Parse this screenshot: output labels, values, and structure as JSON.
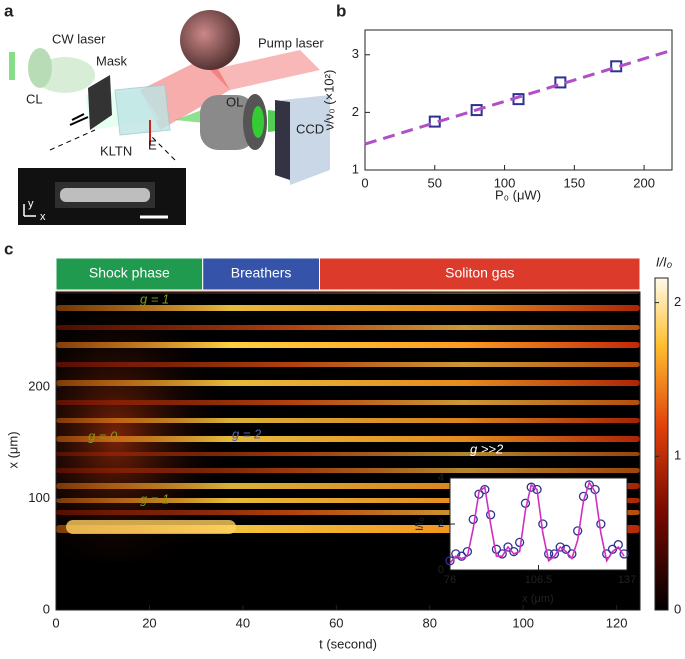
{
  "panel_a": {
    "label": "a",
    "cw_laser": "CW laser",
    "cl": "CL",
    "mask": "Mask",
    "pump_laser": "Pump laser",
    "ol": "OL",
    "ccd": "CCD",
    "kltn": "KLTN",
    "e": "E",
    "axis_y": "y",
    "axis_x": "x"
  },
  "chart_data": [
    {
      "type": "scatter",
      "label": "b",
      "x_label": "P₀ (μW)",
      "y_label": "ν/ν₀ (×10²)",
      "xlim": [
        0,
        220
      ],
      "ylim": [
        1,
        3.43
      ],
      "xticks": [
        0,
        50,
        100,
        150,
        200
      ],
      "yticks": [
        1,
        2,
        3
      ],
      "series": [
        {
          "marker": "square",
          "color": "#2e3192",
          "x": [
            50,
            80,
            110,
            140,
            180
          ],
          "values": [
            1.84,
            2.04,
            2.23,
            2.52,
            2.8
          ]
        },
        {
          "marker": "dashed-line",
          "color": "#b04fc6",
          "x": [
            0,
            220
          ],
          "values": [
            1.45,
            3.08
          ]
        }
      ]
    },
    {
      "type": "heatmap",
      "label": "c",
      "x_label": "t (second)",
      "y_label": "x (μm)",
      "xlim": [
        0,
        125
      ],
      "ylim": [
        0,
        285
      ],
      "xticks": [
        0,
        20,
        40,
        60,
        80,
        100,
        120
      ],
      "yticks": [
        0,
        100,
        200
      ],
      "phases": [
        {
          "label": "Shock phase",
          "color": "#1f9a4f",
          "start": 0,
          "end": 31.4
        },
        {
          "label": "Breathers",
          "color": "#3553a8",
          "start": 31.4,
          "end": 56.4
        },
        {
          "label": "Soliton gas",
          "color": "#dc3a2a",
          "start": 56.4,
          "end": 125
        }
      ],
      "annotations": [
        "g = 1",
        "g = 0",
        "g = 2",
        "g >>2",
        "g = 1"
      ],
      "colorbar": {
        "label": "I/I₀",
        "lim": [
          0,
          2.16
        ],
        "ticks": [
          0,
          1,
          2
        ]
      }
    },
    {
      "type": "scatter",
      "x_label": "x (μm)",
      "y_label": "I/I₀",
      "xlim": [
        76,
        137
      ],
      "ylim": [
        0,
        4
      ],
      "xticks": [
        76,
        106.5,
        137
      ],
      "yticks": [
        0,
        2,
        4
      ],
      "series": [
        {
          "marker": "circle",
          "color": "#2e3192",
          "x": [
            76,
            78,
            80,
            82,
            84,
            86,
            88,
            90,
            92,
            94,
            96,
            98,
            100,
            102,
            104,
            106,
            108,
            110,
            112,
            114,
            116,
            118,
            120,
            122,
            124,
            126,
            128,
            130,
            132,
            134,
            136
          ],
          "values": [
            0.4,
            0.7,
            0.6,
            0.8,
            2.2,
            3.3,
            3.5,
            2.4,
            0.9,
            0.7,
            1.0,
            0.8,
            1.2,
            2.9,
            3.6,
            3.5,
            2.0,
            0.7,
            0.7,
            1.0,
            0.9,
            0.7,
            1.7,
            3.2,
            3.7,
            3.5,
            2.0,
            0.7,
            0.9,
            1.1,
            0.7
          ]
        },
        {
          "marker": "line",
          "color": "#d02fc0",
          "x": [
            76,
            78,
            80,
            82,
            84,
            86,
            88,
            90,
            92,
            94,
            96,
            98,
            100,
            102,
            104,
            106,
            108,
            110,
            112,
            114,
            116,
            118,
            120,
            122,
            124,
            126,
            128,
            130,
            132,
            134,
            136
          ],
          "values": [
            0.3,
            0.6,
            0.5,
            0.6,
            1.8,
            3.4,
            3.6,
            2.0,
            0.6,
            0.6,
            1.0,
            0.7,
            0.8,
            2.6,
            3.7,
            3.5,
            1.6,
            0.4,
            0.6,
            1.0,
            0.8,
            0.5,
            1.3,
            3.0,
            3.8,
            3.4,
            1.6,
            0.4,
            0.8,
            1.0,
            0.6
          ]
        }
      ]
    }
  ]
}
